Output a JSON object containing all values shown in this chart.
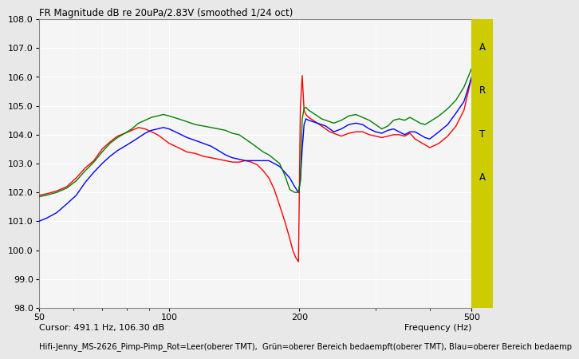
{
  "title": "FR Magnitude dB re 20uPa/2.83V (smoothed 1/24 oct)",
  "xlabel": "Frequency (Hz)",
  "cursor_text": "Cursor: 491.1 Hz, 106.30 dB",
  "legend_text": "Hifi-Jenny_MS-2626_Pimp-Pimp_Rot=Leer(oberer TMT),  Grün=oberer Bereich bedaempft(oberer TMT), Blau=oberer Bereich bedaemp",
  "arta_label": "A\nR\nT\nA",
  "xmin": 50,
  "xmax": 500,
  "ymin": 98.0,
  "ymax": 108.0,
  "yticks": [
    98.0,
    99.0,
    100.0,
    101.0,
    102.0,
    103.0,
    104.0,
    105.0,
    106.0,
    107.0,
    108.0
  ],
  "xticks": [
    50,
    100,
    200,
    500
  ],
  "bg_color": "#e8e8e8",
  "plot_bg": "#f5f5f5",
  "grid_color": "#ffffff",
  "arta_bg": "#cccc00",
  "line_colors": [
    "red",
    "green",
    "blue"
  ],
  "red_x": [
    50,
    52,
    55,
    58,
    61,
    64,
    67,
    70,
    73,
    76,
    79,
    82,
    85,
    88,
    91,
    94,
    97,
    100,
    105,
    110,
    115,
    120,
    125,
    130,
    135,
    140,
    145,
    150,
    155,
    160,
    165,
    170,
    175,
    180,
    185,
    190,
    193,
    196,
    199,
    201,
    203,
    205,
    207,
    210,
    215,
    220,
    225,
    230,
    235,
    240,
    250,
    260,
    270,
    280,
    290,
    300,
    310,
    320,
    330,
    340,
    350,
    360,
    370,
    380,
    390,
    400,
    420,
    440,
    460,
    480,
    500
  ],
  "red_y": [
    101.9,
    101.95,
    102.05,
    102.2,
    102.5,
    102.85,
    103.1,
    103.5,
    103.75,
    103.95,
    104.05,
    104.15,
    104.25,
    104.2,
    104.1,
    104.0,
    103.85,
    103.7,
    103.55,
    103.4,
    103.35,
    103.25,
    103.2,
    103.15,
    103.1,
    103.05,
    103.05,
    103.1,
    103.05,
    102.95,
    102.75,
    102.5,
    102.1,
    101.55,
    101.0,
    100.4,
    100.0,
    99.75,
    99.6,
    105.0,
    106.05,
    104.85,
    104.7,
    104.6,
    104.5,
    104.4,
    104.3,
    104.2,
    104.1,
    104.05,
    103.95,
    104.05,
    104.1,
    104.1,
    104.0,
    103.95,
    103.9,
    103.95,
    104.0,
    104.0,
    103.95,
    104.05,
    103.85,
    103.75,
    103.65,
    103.55,
    103.7,
    103.95,
    104.3,
    104.85,
    106.0
  ],
  "green_x": [
    50,
    52,
    55,
    58,
    61,
    64,
    67,
    70,
    73,
    76,
    79,
    82,
    85,
    88,
    91,
    94,
    97,
    100,
    105,
    110,
    115,
    120,
    125,
    130,
    135,
    140,
    145,
    150,
    155,
    160,
    165,
    170,
    175,
    180,
    185,
    190,
    195,
    199,
    201,
    203,
    205,
    207,
    210,
    215,
    220,
    225,
    230,
    235,
    240,
    250,
    260,
    270,
    280,
    290,
    300,
    310,
    320,
    330,
    340,
    350,
    360,
    370,
    380,
    390,
    400,
    420,
    440,
    460,
    480,
    500
  ],
  "green_y": [
    101.85,
    101.9,
    102.0,
    102.15,
    102.4,
    102.75,
    103.05,
    103.4,
    103.7,
    103.9,
    104.05,
    104.2,
    104.4,
    104.5,
    104.6,
    104.65,
    104.7,
    104.65,
    104.55,
    104.45,
    104.35,
    104.3,
    104.25,
    104.2,
    104.15,
    104.05,
    104.0,
    103.85,
    103.7,
    103.55,
    103.4,
    103.3,
    103.15,
    103.0,
    102.6,
    102.1,
    102.0,
    102.0,
    102.4,
    104.55,
    104.9,
    104.95,
    104.85,
    104.75,
    104.65,
    104.55,
    104.5,
    104.45,
    104.4,
    104.5,
    104.65,
    104.7,
    104.6,
    104.5,
    104.35,
    104.2,
    104.3,
    104.5,
    104.55,
    104.5,
    104.6,
    104.5,
    104.4,
    104.35,
    104.45,
    104.65,
    104.9,
    105.2,
    105.65,
    106.3
  ],
  "blue_x": [
    50,
    52,
    55,
    58,
    61,
    64,
    67,
    70,
    73,
    76,
    79,
    82,
    85,
    88,
    91,
    94,
    97,
    100,
    105,
    110,
    115,
    120,
    125,
    130,
    135,
    140,
    145,
    150,
    155,
    160,
    165,
    170,
    175,
    180,
    185,
    190,
    195,
    199,
    201,
    203,
    205,
    207,
    210,
    215,
    220,
    225,
    230,
    235,
    240,
    250,
    260,
    270,
    280,
    290,
    300,
    310,
    320,
    330,
    340,
    350,
    360,
    370,
    380,
    390,
    400,
    420,
    440,
    460,
    480,
    500
  ],
  "blue_y": [
    101.0,
    101.1,
    101.3,
    101.6,
    101.9,
    102.35,
    102.7,
    103.0,
    103.25,
    103.45,
    103.6,
    103.75,
    103.9,
    104.05,
    104.15,
    104.2,
    104.25,
    104.2,
    104.05,
    103.9,
    103.8,
    103.7,
    103.6,
    103.45,
    103.3,
    103.2,
    103.15,
    103.1,
    103.1,
    103.1,
    103.1,
    103.1,
    103.0,
    102.9,
    102.7,
    102.5,
    102.2,
    102.0,
    102.4,
    103.5,
    104.35,
    104.55,
    104.5,
    104.45,
    104.4,
    104.35,
    104.3,
    104.2,
    104.1,
    104.2,
    104.35,
    104.4,
    104.35,
    104.2,
    104.1,
    104.05,
    104.15,
    104.2,
    104.1,
    104.0,
    104.1,
    104.1,
    104.0,
    103.9,
    103.85,
    104.1,
    104.35,
    104.75,
    105.15,
    106.0
  ]
}
